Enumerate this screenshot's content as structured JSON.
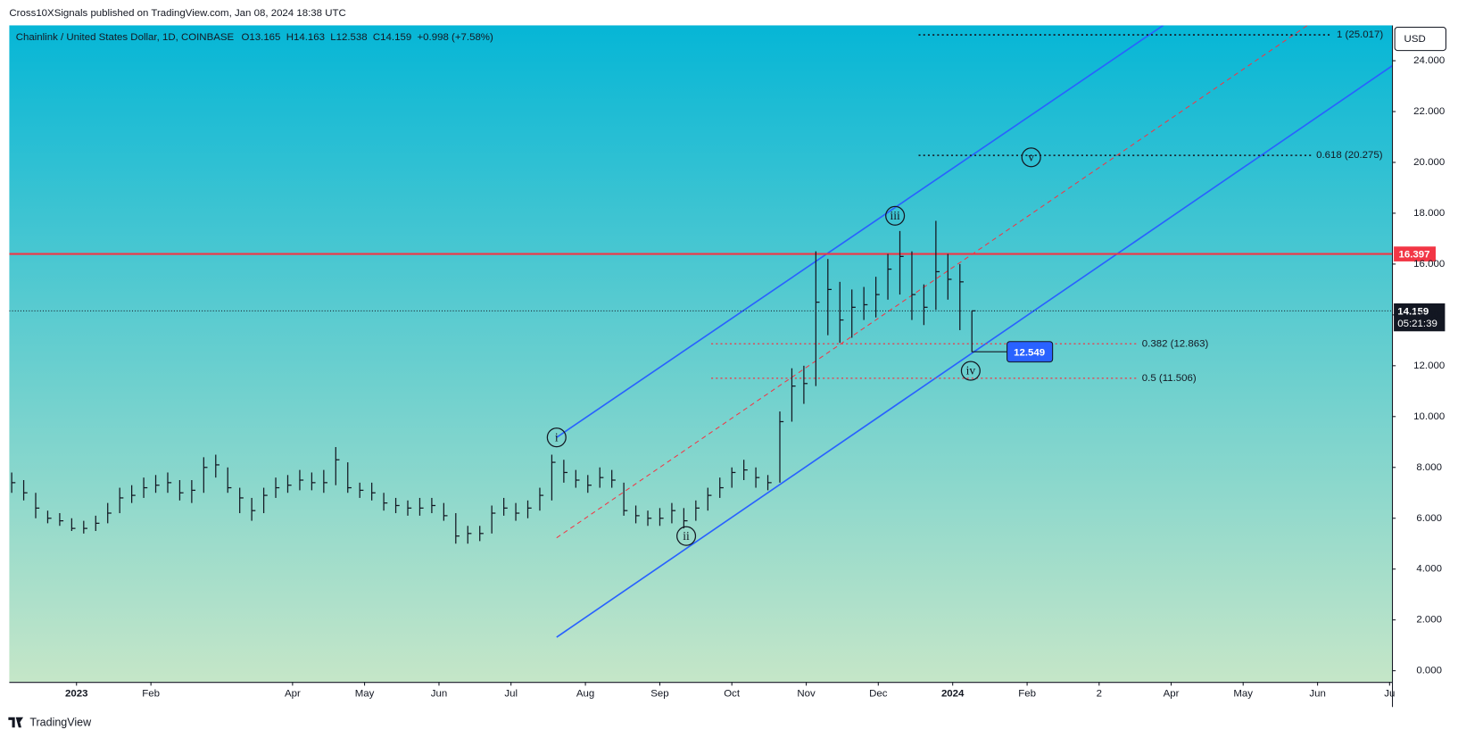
{
  "header": "Cross10XSignals published on TradingView.com, Jan 08, 2024 18:38 UTC",
  "footer": "TradingView",
  "chart_data": {
    "type": "ohlc",
    "title": "Chainlink / United States Dollar, 1D, COINBASE",
    "ohlc_legend": [
      "O13.165",
      "H14.163",
      "L12.538",
      "C14.159",
      "+0.998 (+7.58%)"
    ],
    "currency": "USD",
    "color": "#131722",
    "background": [
      "#06b6d6",
      "#c5e6c8"
    ],
    "x": [
      -27,
      -22,
      -17,
      -12,
      -7,
      -2,
      3,
      8,
      13,
      18,
      23,
      28,
      33,
      38,
      43,
      48,
      53,
      58,
      63,
      68,
      73,
      78,
      83,
      88,
      93,
      98,
      103,
      108,
      113,
      118,
      123,
      128,
      133,
      138,
      143,
      148,
      153,
      158,
      163,
      168,
      173,
      178,
      183,
      188,
      193,
      198,
      203,
      208,
      213,
      218,
      223,
      228,
      233,
      238,
      243,
      248,
      253,
      258,
      263,
      268,
      273,
      278,
      283,
      288,
      293,
      298,
      303,
      308,
      313,
      318,
      323,
      328,
      333,
      338,
      343,
      348,
      353,
      358,
      363,
      368,
      373
    ],
    "high": [
      7.8,
      7.5,
      7.0,
      6.3,
      6.2,
      6.0,
      5.9,
      6.1,
      6.6,
      7.2,
      7.3,
      7.6,
      7.7,
      7.8,
      7.5,
      7.5,
      8.4,
      8.5,
      8.0,
      7.2,
      6.8,
      7.2,
      7.6,
      7.7,
      7.9,
      7.8,
      7.9,
      8.8,
      8.2,
      7.4,
      7.4,
      7.0,
      6.8,
      6.7,
      6.8,
      6.8,
      6.6,
      6.2,
      5.7,
      5.7,
      6.5,
      6.8,
      6.6,
      6.7,
      7.2,
      8.5,
      8.3,
      7.9,
      7.7,
      8.0,
      7.9,
      7.4,
      6.5,
      6.3,
      6.4,
      6.6,
      6.4,
      6.7,
      7.2,
      7.6,
      8.0,
      8.3,
      8.0,
      7.7,
      10.2,
      11.9,
      12.0,
      16.5,
      16.2,
      15.3,
      15.0,
      15.1,
      15.5,
      16.4,
      17.3,
      16.5,
      15.2,
      17.7,
      16.4,
      16.0,
      14.163
    ],
    "low": [
      7.0,
      6.7,
      6.0,
      5.8,
      5.7,
      5.5,
      5.4,
      5.5,
      5.8,
      6.2,
      6.6,
      6.8,
      7.0,
      7.0,
      6.7,
      6.6,
      7.0,
      7.6,
      7.0,
      6.2,
      5.9,
      6.2,
      6.8,
      7.0,
      7.1,
      7.1,
      7.0,
      7.3,
      7.0,
      6.8,
      6.7,
      6.3,
      6.2,
      6.1,
      6.1,
      6.2,
      5.9,
      5.0,
      5.0,
      5.1,
      5.4,
      6.1,
      5.9,
      6.0,
      6.3,
      6.7,
      7.4,
      7.2,
      7.0,
      7.2,
      7.2,
      6.1,
      5.8,
      5.7,
      5.7,
      5.8,
      5.6,
      5.9,
      6.3,
      6.8,
      7.2,
      7.5,
      7.2,
      7.1,
      7.4,
      9.8,
      10.5,
      11.2,
      13.2,
      12.9,
      13.1,
      13.8,
      13.9,
      14.6,
      14.8,
      13.8,
      13.6,
      14.2,
      14.6,
      13.4,
      12.538
    ],
    "close": [
      7.4,
      7.0,
      6.4,
      6.0,
      5.9,
      5.6,
      5.6,
      5.8,
      6.2,
      6.8,
      6.9,
      7.2,
      7.3,
      7.4,
      7.0,
      7.1,
      8.0,
      8.1,
      7.2,
      6.8,
      6.3,
      6.9,
      7.2,
      7.3,
      7.5,
      7.4,
      7.4,
      8.3,
      7.2,
      7.1,
      7.0,
      6.6,
      6.5,
      6.4,
      6.4,
      6.5,
      6.1,
      5.3,
      5.4,
      5.4,
      6.2,
      6.4,
      6.2,
      6.4,
      6.9,
      8.2,
      7.8,
      7.5,
      7.3,
      7.6,
      7.5,
      6.3,
      6.1,
      6.0,
      6.0,
      6.3,
      5.9,
      6.4,
      6.9,
      7.2,
      7.8,
      7.9,
      7.6,
      7.4,
      9.8,
      11.2,
      11.3,
      14.5,
      15.0,
      13.8,
      14.3,
      14.4,
      14.8,
      15.8,
      16.3,
      14.8,
      14.3,
      15.7,
      15.4,
      15.3,
      14.159
    ],
    "xlim": [
      -28,
      548
    ],
    "xticks": [
      {
        "value": 0,
        "label": "2023"
      },
      {
        "value": 31,
        "label": "Feb"
      },
      {
        "value": 90,
        "label": "Apr"
      },
      {
        "value": 120,
        "label": "May"
      },
      {
        "value": 151,
        "label": "Jun"
      },
      {
        "value": 181,
        "label": "Jul"
      },
      {
        "value": 212,
        "label": "Aug"
      },
      {
        "value": 243,
        "label": "Sep"
      },
      {
        "value": 273,
        "label": "Oct"
      },
      {
        "value": 304,
        "label": "Nov"
      },
      {
        "value": 334,
        "label": "Dec"
      },
      {
        "value": 365,
        "label": "2024"
      },
      {
        "value": 396,
        "label": "Feb"
      },
      {
        "value": 426,
        "label": "2"
      },
      {
        "value": 456,
        "label": "Apr"
      },
      {
        "value": 486,
        "label": "May"
      },
      {
        "value": 517,
        "label": "Jun"
      },
      {
        "value": 547,
        "label": "Ju"
      }
    ],
    "ylim": [
      -0.44,
      25.39
    ],
    "yticks": [
      {
        "value": 0,
        "label": "0.000"
      },
      {
        "value": 2,
        "label": "2.000"
      },
      {
        "value": 4,
        "label": "4.000"
      },
      {
        "value": 6,
        "label": "6.000"
      },
      {
        "value": 8,
        "label": "8.000"
      },
      {
        "value": 10,
        "label": "10.000"
      },
      {
        "value": 12,
        "label": "12.000"
      },
      {
        "value": 14,
        "label": "14.000"
      },
      {
        "value": 16,
        "label": "16.000"
      },
      {
        "value": 18,
        "label": "18.000"
      },
      {
        "value": 20,
        "label": "20.000"
      },
      {
        "value": 22,
        "label": "22.000"
      },
      {
        "value": 24,
        "label": "24.000"
      }
    ],
    "hline": {
      "value": 16.397,
      "color": "#f23645"
    },
    "last_price": 14.159,
    "countdown": "05:21:39",
    "trendlines": [
      {
        "color": "#2962ff",
        "dashed": false,
        "points": [
          [
            200,
            9.18
          ],
          [
            452.7,
            25.39
          ]
        ]
      },
      {
        "color": "#2962ff",
        "dashed": false,
        "points": [
          [
            200,
            1.32
          ],
          [
            548.4,
            23.82
          ]
        ]
      },
      {
        "color": "#f23645",
        "dashed": true,
        "points": [
          [
            200,
            5.23
          ],
          [
            512.8,
            25.39
          ]
        ]
      }
    ],
    "fib_levels": [
      {
        "value": 25.017,
        "label": "1 (25.017)",
        "start": 350.8,
        "end": 523,
        "color": "#131722"
      },
      {
        "value": 20.275,
        "label": "0.618 (20.275)",
        "start": 350.8,
        "end": 514.5,
        "color": "#131722"
      },
      {
        "value": 12.863,
        "label": "0.382 (12.863)",
        "start": 264.4,
        "end": 441.9,
        "color": "#f23645"
      },
      {
        "value": 11.506,
        "label": "0.5 (11.506)",
        "start": 264.4,
        "end": 441.9,
        "color": "#f23645"
      }
    ],
    "waves": [
      {
        "label": "i",
        "x": 200,
        "y": 9.18
      },
      {
        "label": "ii",
        "x": 254,
        "y": 5.3
      },
      {
        "label": "iii",
        "x": 341,
        "y": 17.9
      },
      {
        "label": "iv",
        "x": 372.5,
        "y": 11.8
      },
      {
        "label": "v",
        "x": 397.7,
        "y": 20.2
      }
    ],
    "callout": {
      "value": 12.549,
      "x": 373,
      "color": "#2962ff"
    }
  }
}
